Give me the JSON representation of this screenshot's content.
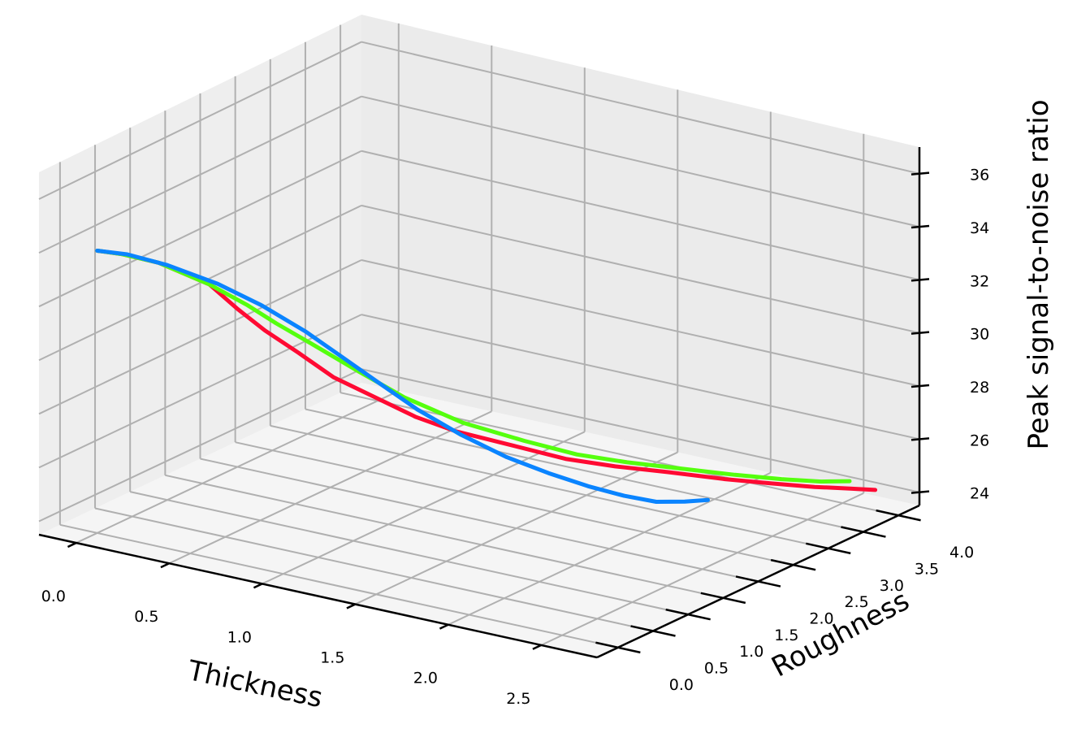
{
  "chart_data": {
    "type": "line3d",
    "title": "",
    "xlabel": "Thickness",
    "ylabel": "Roughness",
    "zlabel": "Peak signal-to-noise ratio",
    "x_ticks": [
      "0.0",
      "0.5",
      "1.0",
      "1.5",
      "2.0",
      "2.5"
    ],
    "y_ticks": [
      "0.0",
      "0.5",
      "1.0",
      "1.5",
      "2.0",
      "2.5",
      "3.0",
      "3.5",
      "4.0"
    ],
    "z_ticks": [
      "24",
      "26",
      "28",
      "30",
      "32",
      "34",
      "36"
    ],
    "xlim": [
      -0.2,
      2.8
    ],
    "ylim": [
      -0.3,
      4.3
    ],
    "zlim": [
      23.5,
      37
    ],
    "grid": true,
    "series": [
      {
        "name": "red",
        "color": "#ff0a33",
        "points": [
          [
            0.0,
            0.0,
            34.0
          ],
          [
            0.12,
            0.04,
            34.0
          ],
          [
            0.3,
            0.08,
            33.9
          ],
          [
            0.55,
            0.14,
            33.4
          ],
          [
            0.68,
            0.2,
            32.6
          ],
          [
            0.8,
            0.27,
            31.9
          ],
          [
            0.95,
            0.35,
            31.2
          ],
          [
            1.1,
            0.45,
            30.4
          ],
          [
            1.28,
            0.6,
            29.7
          ],
          [
            1.42,
            0.78,
            29.0
          ],
          [
            1.55,
            1.0,
            28.4
          ],
          [
            1.75,
            1.3,
            27.8
          ],
          [
            1.92,
            1.6,
            27.2
          ],
          [
            2.05,
            1.95,
            26.7
          ],
          [
            2.18,
            2.35,
            26.2
          ],
          [
            2.32,
            2.8,
            25.6
          ],
          [
            2.42,
            3.2,
            25.1
          ],
          [
            2.5,
            3.6,
            24.6
          ],
          [
            2.56,
            3.95,
            24.2
          ],
          [
            2.6,
            4.2,
            23.9
          ]
        ]
      },
      {
        "name": "green",
        "color": "#55ff0e",
        "points": [
          [
            0.0,
            0.0,
            34.0
          ],
          [
            0.12,
            0.04,
            34.0
          ],
          [
            0.3,
            0.08,
            33.9
          ],
          [
            0.55,
            0.14,
            33.4
          ],
          [
            0.72,
            0.22,
            32.8
          ],
          [
            0.85,
            0.3,
            32.2
          ],
          [
            1.0,
            0.42,
            31.5
          ],
          [
            1.18,
            0.58,
            30.6
          ],
          [
            1.35,
            0.8,
            29.6
          ],
          [
            1.55,
            1.1,
            28.6
          ],
          [
            1.75,
            1.45,
            27.8
          ],
          [
            1.9,
            1.8,
            27.1
          ],
          [
            2.02,
            2.2,
            26.5
          ],
          [
            2.14,
            2.65,
            25.9
          ],
          [
            2.26,
            3.1,
            25.3
          ],
          [
            2.36,
            3.5,
            24.8
          ],
          [
            2.44,
            3.85,
            24.4
          ],
          [
            2.5,
            4.1,
            24.2
          ]
        ]
      },
      {
        "name": "blue",
        "color": "#0a84ff",
        "points": [
          [
            0.0,
            0.0,
            34.0
          ],
          [
            0.15,
            0.03,
            34.05
          ],
          [
            0.35,
            0.07,
            33.9
          ],
          [
            0.6,
            0.13,
            33.5
          ],
          [
            0.8,
            0.22,
            32.9
          ],
          [
            1.0,
            0.32,
            32.1
          ],
          [
            1.15,
            0.42,
            31.3
          ],
          [
            1.3,
            0.55,
            30.4
          ],
          [
            1.45,
            0.72,
            29.4
          ],
          [
            1.6,
            0.95,
            28.4
          ],
          [
            1.75,
            1.2,
            27.5
          ],
          [
            1.88,
            1.45,
            26.8
          ],
          [
            1.98,
            1.75,
            26.1
          ],
          [
            2.06,
            2.05,
            25.5
          ],
          [
            2.12,
            2.35,
            25.0
          ],
          [
            2.16,
            2.65,
            24.7
          ],
          [
            2.19,
            2.9,
            24.5
          ]
        ]
      }
    ]
  }
}
